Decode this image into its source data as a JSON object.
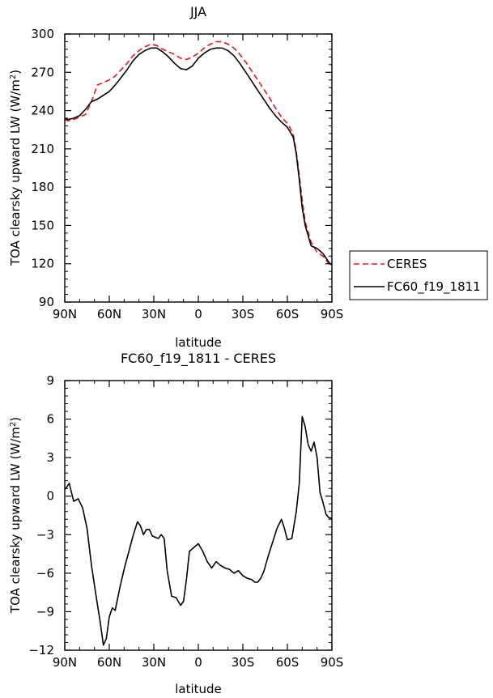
{
  "chart_data": [
    {
      "type": "line",
      "title": "JJA",
      "xlabel": "latitude",
      "ylabel": "TOA clearsky upward LW (W/m²)",
      "ylabel_main": "TOA clearsky upward LW (W/m",
      "ylabel_sup": "2",
      "ylabel_end": ")",
      "xlim": [
        90,
        -90
      ],
      "ylim": [
        90,
        300
      ],
      "x_ticks": [
        90,
        60,
        30,
        0,
        -30,
        -60,
        -90
      ],
      "x_tick_labels": [
        "90N",
        "60N",
        "30N",
        "0",
        "30S",
        "60S",
        "90S"
      ],
      "y_ticks": [
        90,
        120,
        150,
        180,
        210,
        240,
        270,
        300
      ],
      "y_tick_labels": [
        "90",
        "120",
        "150",
        "180",
        "210",
        "240",
        "270",
        "300"
      ],
      "grid": false,
      "legend_position": "right",
      "series": [
        {
          "name": "CERES",
          "color": "#e8141b",
          "dashed": true,
          "x": [
            90,
            88,
            84,
            80,
            76,
            72,
            68,
            64,
            60,
            56,
            52,
            48,
            44,
            40,
            36,
            32,
            28,
            24,
            20,
            16,
            12,
            8,
            4,
            0,
            -4,
            -8,
            -12,
            -16,
            -20,
            -24,
            -28,
            -32,
            -36,
            -40,
            -44,
            -48,
            -52,
            -56,
            -60,
            -62,
            -64,
            -66,
            -68,
            -70,
            -72,
            -76,
            -80,
            -84,
            -88,
            -90
          ],
          "y": [
            233,
            232,
            233,
            235,
            237,
            247,
            260,
            262,
            264,
            267,
            272,
            277,
            283,
            287,
            290,
            292,
            291,
            288,
            286,
            284,
            281,
            280,
            282,
            285,
            289,
            292,
            294,
            294,
            292,
            289,
            284,
            278,
            271,
            264,
            257,
            250,
            242,
            235,
            230,
            226,
            221,
            208,
            189,
            170,
            153,
            137,
            129,
            126,
            120,
            118
          ]
        },
        {
          "name": "FC60_f19_1811",
          "color": "#000000",
          "dashed": false,
          "x": [
            90,
            88,
            84,
            80,
            76,
            72,
            68,
            64,
            60,
            56,
            52,
            48,
            44,
            40,
            36,
            32,
            28,
            24,
            20,
            16,
            12,
            8,
            4,
            0,
            -4,
            -8,
            -12,
            -16,
            -20,
            -24,
            -28,
            -32,
            -36,
            -40,
            -44,
            -48,
            -52,
            -56,
            -60,
            -62,
            -64,
            -66,
            -68,
            -70,
            -72,
            -76,
            -80,
            -84,
            -88,
            -90
          ],
          "y": [
            234,
            233,
            234,
            236,
            241,
            247,
            249,
            252,
            255,
            260,
            266,
            272,
            279,
            284,
            287,
            289,
            289,
            286,
            282,
            277,
            273,
            272,
            275,
            281,
            285,
            288,
            289,
            289,
            287,
            283,
            277,
            270,
            263,
            256,
            249,
            242,
            236,
            231,
            227,
            223,
            219,
            206,
            186,
            164,
            150,
            134,
            132,
            128,
            121,
            119
          ]
        }
      ]
    },
    {
      "type": "line",
      "title": "FC60_f19_1811 - CERES",
      "xlabel": "latitude",
      "ylabel": "TOA clearsky upward LW (W/m²)",
      "ylabel_main": "TOA clearsky upward LW (W/m",
      "ylabel_sup": "2",
      "ylabel_end": ")",
      "xlim": [
        90,
        -90
      ],
      "ylim": [
        -12,
        9
      ],
      "x_ticks": [
        90,
        60,
        30,
        0,
        -30,
        -60,
        -90
      ],
      "x_tick_labels": [
        "90N",
        "60N",
        "30N",
        "0",
        "30S",
        "60S",
        "90S"
      ],
      "y_ticks": [
        -12,
        -9,
        -6,
        -3,
        0,
        3,
        6,
        9
      ],
      "y_tick_labels": [
        "−12",
        "−9",
        "−6",
        "−3",
        "0",
        "3",
        "6",
        "9"
      ],
      "grid": false,
      "series": [
        {
          "color": "#000000",
          "dashed": false,
          "x": [
            90,
            87,
            84,
            81,
            78,
            75,
            72,
            69,
            66,
            64,
            62,
            60,
            58,
            56,
            53,
            50,
            47,
            44,
            41,
            39,
            37,
            35,
            33,
            31,
            29,
            27,
            25,
            23,
            21,
            18,
            15,
            12,
            10,
            8,
            6,
            3,
            0,
            -3,
            -6,
            -9,
            -12,
            -15,
            -18,
            -21,
            -24,
            -27,
            -30,
            -33,
            -36,
            -38,
            -40,
            -42,
            -44,
            -47,
            -50,
            -53,
            -56,
            -58,
            -60,
            -63,
            -66,
            -68,
            -70,
            -72,
            -74,
            -76,
            -78,
            -80,
            -82,
            -84,
            -86,
            -88,
            -90
          ],
          "y": [
            0.5,
            1.0,
            -0.4,
            -0.2,
            -0.9,
            -2.5,
            -5.4,
            -7.7,
            -9.9,
            -11.6,
            -11.1,
            -9.4,
            -8.7,
            -8.9,
            -7.2,
            -5.7,
            -4.4,
            -3.1,
            -2.0,
            -2.3,
            -3.0,
            -2.6,
            -2.6,
            -3.1,
            -3.2,
            -3.3,
            -3.0,
            -3.3,
            -5.8,
            -7.8,
            -7.9,
            -8.5,
            -8.2,
            -6.5,
            -4.3,
            -4.0,
            -3.7,
            -4.3,
            -5.1,
            -5.6,
            -5.1,
            -5.4,
            -5.6,
            -5.7,
            -6.0,
            -5.8,
            -6.2,
            -6.4,
            -6.5,
            -6.7,
            -6.7,
            -6.4,
            -5.9,
            -4.7,
            -3.6,
            -2.5,
            -1.8,
            -2.5,
            -3.4,
            -3.3,
            -1.2,
            1.0,
            6.2,
            5.4,
            4.0,
            3.5,
            4.2,
            3.0,
            0.3,
            -0.5,
            -1.4,
            -1.7,
            -1.7
          ]
        }
      ]
    }
  ]
}
